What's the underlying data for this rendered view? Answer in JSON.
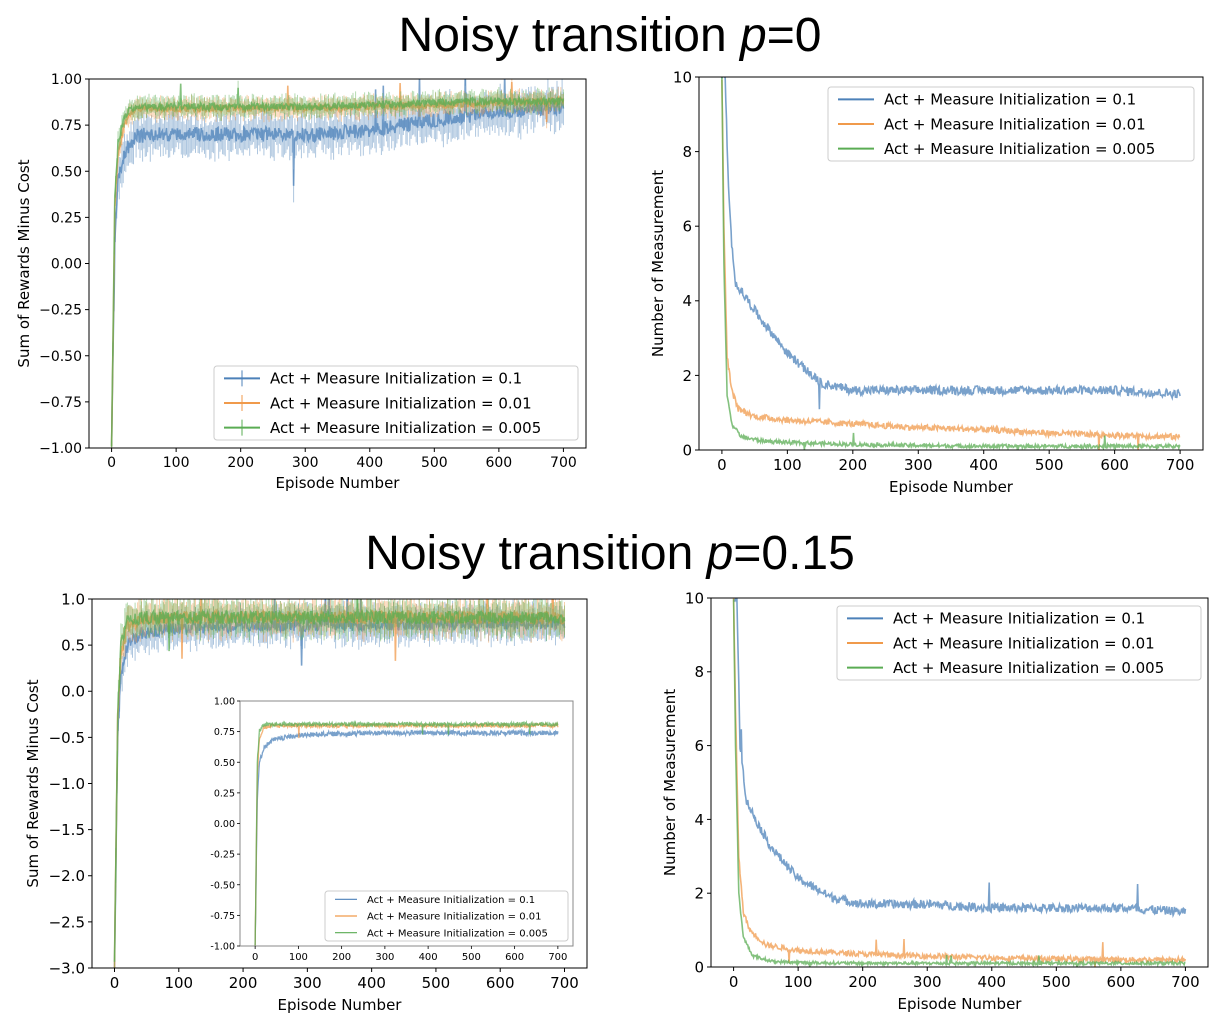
{
  "titles": {
    "top": {
      "prefix": "Noisy transition ",
      "var": "p",
      "suffix": "=0"
    },
    "bottom": {
      "prefix": "Noisy transition ",
      "var": "p",
      "suffix": "=0.15"
    }
  },
  "colors": {
    "blue": "#4c81b9",
    "orange": "#f09a4b",
    "green": "#5aac53"
  },
  "chart_data": [
    {
      "type": "line",
      "panel": "top-left",
      "xlabel": "Episode Number",
      "ylabel": "Sum of Rewards Minus Cost",
      "xlim": [
        -35,
        735
      ],
      "ylim": [
        -1.0,
        1.0
      ],
      "xticks": [
        "0",
        "100",
        "200",
        "300",
        "400",
        "500",
        "600",
        "700"
      ],
      "yticks": [
        "1.00",
        "0.75",
        "0.50",
        "0.25",
        "0.00",
        "−0.25",
        "−0.50",
        "−0.75",
        "−1.00"
      ],
      "legend_position": "lower-right",
      "error_bars": true,
      "series": [
        {
          "name": "Act + Measure Initialization = 0.1",
          "color": "blue",
          "x": [
            0,
            5,
            10,
            20,
            30,
            40,
            60,
            100,
            200,
            300,
            400,
            450,
            500,
            600,
            700
          ],
          "y": [
            -1.0,
            0.1,
            0.45,
            0.6,
            0.66,
            0.69,
            0.7,
            0.7,
            0.7,
            0.7,
            0.72,
            0.75,
            0.78,
            0.82,
            0.85
          ],
          "noise": 0.04
        },
        {
          "name": "Act + Measure Initialization = 0.01",
          "color": "orange",
          "x": [
            0,
            5,
            10,
            20,
            30,
            40,
            60,
            100,
            200,
            300,
            400,
            500,
            600,
            700
          ],
          "y": [
            -1.0,
            0.3,
            0.6,
            0.75,
            0.82,
            0.84,
            0.84,
            0.84,
            0.84,
            0.84,
            0.85,
            0.86,
            0.87,
            0.88
          ],
          "noise": 0.02
        },
        {
          "name": "Act + Measure Initialization = 0.005",
          "color": "green",
          "x": [
            0,
            5,
            10,
            20,
            30,
            40,
            60,
            100,
            200,
            300,
            400,
            500,
            600,
            700
          ],
          "y": [
            -1.0,
            0.35,
            0.65,
            0.8,
            0.84,
            0.85,
            0.85,
            0.85,
            0.85,
            0.85,
            0.86,
            0.87,
            0.88,
            0.88
          ],
          "noise": 0.02
        }
      ]
    },
    {
      "type": "line",
      "panel": "top-right",
      "xlabel": "Episode Number",
      "ylabel": "Number of Measurement",
      "xlim": [
        -35,
        735
      ],
      "ylim": [
        0,
        10
      ],
      "xticks": [
        "0",
        "100",
        "200",
        "300",
        "400",
        "500",
        "600",
        "700"
      ],
      "yticks": [
        "0",
        "2",
        "4",
        "6",
        "8",
        "10"
      ],
      "legend_position": "upper-right",
      "series": [
        {
          "name": "Act + Measure Initialization = 0.1",
          "color": "blue",
          "x": [
            0,
            5,
            10,
            15,
            20,
            40,
            60,
            100,
            150,
            200,
            300,
            400,
            500,
            600,
            700
          ],
          "y": [
            10,
            10,
            7,
            5.5,
            4.5,
            4.0,
            3.5,
            2.6,
            1.8,
            1.6,
            1.6,
            1.6,
            1.6,
            1.6,
            1.5
          ],
          "noise": 0.12
        },
        {
          "name": "Act + Measure Initialization = 0.01",
          "color": "orange",
          "x": [
            0,
            3,
            8,
            15,
            25,
            50,
            100,
            200,
            300,
            400,
            500,
            600,
            700
          ],
          "y": [
            10,
            6,
            2.5,
            1.6,
            1.1,
            0.9,
            0.8,
            0.7,
            0.6,
            0.55,
            0.45,
            0.4,
            0.35
          ],
          "noise": 0.08
        },
        {
          "name": "Act + Measure Initialization = 0.005",
          "color": "green",
          "x": [
            0,
            3,
            8,
            15,
            30,
            60,
            100,
            200,
            300,
            400,
            500,
            600,
            700
          ],
          "y": [
            10,
            5,
            1.5,
            0.7,
            0.35,
            0.25,
            0.2,
            0.15,
            0.12,
            0.1,
            0.1,
            0.1,
            0.1
          ],
          "noise": 0.05
        }
      ]
    },
    {
      "type": "line",
      "panel": "bottom-left",
      "xlabel": "Episode Number",
      "ylabel": "Sum of Rewards Minus Cost",
      "xlim": [
        -35,
        735
      ],
      "ylim": [
        -3.0,
        1.0
      ],
      "xticks": [
        "0",
        "100",
        "200",
        "300",
        "400",
        "500",
        "600",
        "700"
      ],
      "yticks": [
        "1.0",
        "0.5",
        "0.0",
        "−0.5",
        "−1.0",
        "−1.5",
        "−2.0",
        "−2.5",
        "−3.0"
      ],
      "error_bars": true,
      "series": [
        {
          "name": "Act + Measure Initialization = 0.1",
          "color": "blue",
          "x": [
            0,
            5,
            10,
            20,
            40,
            80,
            150,
            300,
            500,
            700
          ],
          "y": [
            -3.0,
            -0.5,
            0.2,
            0.5,
            0.62,
            0.68,
            0.7,
            0.72,
            0.73,
            0.74
          ],
          "noise": 0.07
        },
        {
          "name": "Act + Measure Initialization = 0.01",
          "color": "orange",
          "x": [
            0,
            5,
            10,
            20,
            40,
            80,
            150,
            300,
            500,
            700
          ],
          "y": [
            -3.0,
            -0.3,
            0.4,
            0.7,
            0.78,
            0.8,
            0.8,
            0.8,
            0.8,
            0.8
          ],
          "noise": 0.07
        },
        {
          "name": "Act + Measure Initialization = 0.005",
          "color": "green",
          "x": [
            0,
            5,
            10,
            20,
            40,
            80,
            150,
            300,
            500,
            700
          ],
          "y": [
            -3.0,
            -0.2,
            0.5,
            0.75,
            0.8,
            0.8,
            0.8,
            0.8,
            0.8,
            0.8
          ],
          "noise": 0.07
        }
      ],
      "inset": {
        "xlim": [
          -35,
          735
        ],
        "ylim": [
          -1.0,
          1.0
        ],
        "xticks": [
          "0",
          "100",
          "200",
          "300",
          "400",
          "500",
          "600",
          "700"
        ],
        "yticks": [
          "1.00",
          "0.75",
          "0.50",
          "0.25",
          "0.00",
          "-0.25",
          "-0.50",
          "-0.75",
          "-1.00"
        ],
        "legend_position": "lower-right",
        "series": [
          {
            "name": "Act + Measure Initialization = 0.1",
            "color": "blue",
            "x": [
              0,
              5,
              10,
              20,
              40,
              80,
              150,
              300,
              500,
              700
            ],
            "y": [
              -1.0,
              0.2,
              0.5,
              0.62,
              0.68,
              0.71,
              0.73,
              0.74,
              0.74,
              0.74
            ],
            "noise": 0.02
          },
          {
            "name": "Act + Measure Initialization = 0.01",
            "color": "orange",
            "x": [
              0,
              5,
              10,
              20,
              40,
              80,
              150,
              300,
              500,
              700
            ],
            "y": [
              -1.0,
              0.4,
              0.7,
              0.78,
              0.8,
              0.8,
              0.8,
              0.8,
              0.8,
              0.8
            ],
            "noise": 0.015
          },
          {
            "name": "Act + Measure Initialization = 0.005",
            "color": "green",
            "x": [
              0,
              5,
              10,
              20,
              40,
              80,
              150,
              300,
              500,
              700
            ],
            "y": [
              -1.0,
              0.5,
              0.76,
              0.8,
              0.81,
              0.81,
              0.81,
              0.81,
              0.81,
              0.81
            ],
            "noise": 0.015
          }
        ]
      }
    },
    {
      "type": "line",
      "panel": "bottom-right",
      "xlabel": "Episode Number",
      "ylabel": "Number of Measurement",
      "xlim": [
        -35,
        735
      ],
      "ylim": [
        0,
        10
      ],
      "xticks": [
        "0",
        "100",
        "200",
        "300",
        "400",
        "500",
        "600",
        "700"
      ],
      "yticks": [
        "0",
        "2",
        "4",
        "6",
        "8",
        "10"
      ],
      "legend_position": "upper-right",
      "series": [
        {
          "name": "Act + Measure Initialization = 0.1",
          "color": "blue",
          "x": [
            0,
            5,
            10,
            20,
            40,
            60,
            100,
            150,
            200,
            300,
            400,
            500,
            600,
            700
          ],
          "y": [
            10,
            10,
            6,
            4.5,
            3.8,
            3.2,
            2.4,
            1.9,
            1.7,
            1.7,
            1.6,
            1.6,
            1.6,
            1.5
          ],
          "noise": 0.12
        },
        {
          "name": "Act + Measure Initialization = 0.01",
          "color": "orange",
          "x": [
            0,
            3,
            8,
            15,
            25,
            50,
            100,
            200,
            300,
            400,
            500,
            600,
            700
          ],
          "y": [
            10,
            7,
            3,
            1.5,
            1.0,
            0.6,
            0.45,
            0.35,
            0.3,
            0.25,
            0.22,
            0.2,
            0.2
          ],
          "noise": 0.07
        },
        {
          "name": "Act + Measure Initialization = 0.005",
          "color": "green",
          "x": [
            0,
            3,
            8,
            15,
            30,
            60,
            100,
            200,
            300,
            400,
            500,
            600,
            700
          ],
          "y": [
            10,
            6,
            2,
            0.8,
            0.3,
            0.15,
            0.12,
            0.1,
            0.1,
            0.1,
            0.1,
            0.1,
            0.1
          ],
          "noise": 0.04
        }
      ]
    }
  ]
}
